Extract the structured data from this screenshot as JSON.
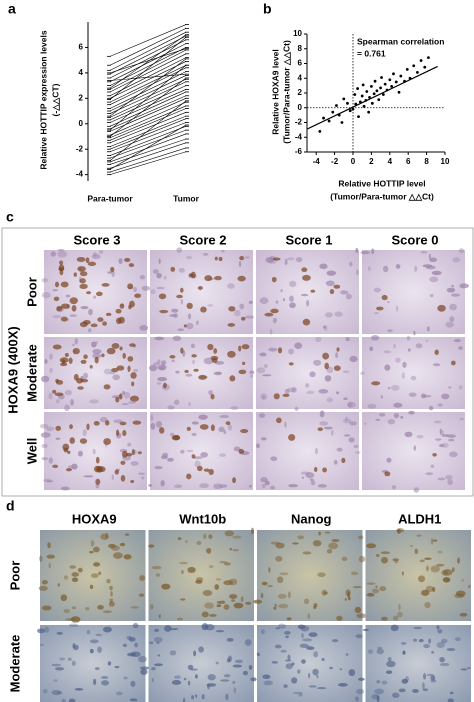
{
  "chart_data": [
    {
      "type": "paired",
      "label": "a",
      "ylabel": [
        "Relative HOTTIP expression levels",
        "(-△△CT)"
      ],
      "categories": [
        "Para-tumor",
        "Tumor"
      ],
      "ylim": [
        -4.5,
        8
      ],
      "yticks": [
        -4,
        -2,
        0,
        2,
        4,
        6
      ],
      "color": "#000000",
      "pairs": [
        [
          5.3,
          7.8
        ],
        [
          4.6,
          7.5
        ],
        [
          4.2,
          7.2
        ],
        [
          3.9,
          6.9
        ],
        [
          3.6,
          6.6
        ],
        [
          3.3,
          6.3
        ],
        [
          3.0,
          6.0
        ],
        [
          2.7,
          5.8
        ],
        [
          2.5,
          5.5
        ],
        [
          2.2,
          5.2
        ],
        [
          2.0,
          4.9
        ],
        [
          1.7,
          4.6
        ],
        [
          1.5,
          4.4
        ],
        [
          1.2,
          4.1
        ],
        [
          1.0,
          3.8
        ],
        [
          0.8,
          3.5
        ],
        [
          0.5,
          3.3
        ],
        [
          0.3,
          3.0
        ],
        [
          0.1,
          2.7
        ],
        [
          -0.2,
          2.5
        ],
        [
          -0.4,
          2.2
        ],
        [
          -0.6,
          2.0
        ],
        [
          -0.9,
          1.7
        ],
        [
          -1.1,
          1.4
        ],
        [
          -1.3,
          1.2
        ],
        [
          -1.5,
          0.9
        ],
        [
          -1.8,
          0.6
        ],
        [
          -2.0,
          0.4
        ],
        [
          -2.2,
          0.1
        ],
        [
          -2.5,
          -0.2
        ],
        [
          -2.7,
          -0.5
        ],
        [
          -3.0,
          -0.8
        ],
        [
          -3.2,
          -1.2
        ],
        [
          -3.5,
          -1.5
        ],
        [
          -3.8,
          -1.9
        ],
        [
          -4.0,
          -2.2
        ],
        [
          1.9,
          6.8
        ],
        [
          0.6,
          5.1
        ],
        [
          -1.0,
          3.6
        ],
        [
          2.8,
          7.0
        ],
        [
          -2.9,
          1.8
        ],
        [
          4.0,
          5.9
        ],
        [
          -0.5,
          4.6
        ],
        [
          3.4,
          3.9
        ],
        [
          -3.6,
          -0.1
        ]
      ]
    },
    {
      "type": "scatter",
      "label": "b",
      "xlabel": [
        "Relative HOTTIP level",
        "(Tumor/Para-tumor △△Ct)"
      ],
      "ylabel": [
        "Relative HOXA9 level",
        "(Tumor/Para-tumor △△Ct)"
      ],
      "annotation": [
        "Spearman correlation",
        "= 0.761"
      ],
      "xlim": [
        -5,
        10
      ],
      "xticks": [
        -4,
        -2,
        0,
        2,
        4,
        6,
        8,
        10
      ],
      "ylim": [
        -6,
        10
      ],
      "yticks": [
        -6,
        -4,
        -2,
        0,
        2,
        4,
        6,
        8,
        10
      ],
      "color": "#000000",
      "reference_x": 0,
      "reference_y": 0,
      "fit": {
        "x": [
          -5,
          9.2
        ],
        "y": [
          -2.9,
          5.6
        ]
      },
      "points": [
        [
          -3.6,
          -3.2
        ],
        [
          -3.2,
          -1.4
        ],
        [
          -2.6,
          -1.8
        ],
        [
          -2.2,
          -0.6
        ],
        [
          -1.8,
          0.3
        ],
        [
          -1.5,
          -1.0
        ],
        [
          -1.2,
          -2.0
        ],
        [
          -1.0,
          1.2
        ],
        [
          -0.6,
          0.6
        ],
        [
          -0.3,
          -0.4
        ],
        [
          0.0,
          -0.2
        ],
        [
          0.2,
          1.8
        ],
        [
          0.3,
          0.5
        ],
        [
          0.5,
          2.6
        ],
        [
          0.6,
          -1.2
        ],
        [
          0.8,
          0.8
        ],
        [
          1.0,
          1.6
        ],
        [
          1.1,
          3.1
        ],
        [
          1.2,
          0.2
        ],
        [
          1.4,
          1.0
        ],
        [
          1.5,
          2.2
        ],
        [
          1.7,
          -0.6
        ],
        [
          1.8,
          1.4
        ],
        [
          2.0,
          2.9
        ],
        [
          2.1,
          0.6
        ],
        [
          2.3,
          1.9
        ],
        [
          2.4,
          3.6
        ],
        [
          2.6,
          2.3
        ],
        [
          2.8,
          1.1
        ],
        [
          3.0,
          2.7
        ],
        [
          3.1,
          4.1
        ],
        [
          3.3,
          1.8
        ],
        [
          3.5,
          3.2
        ],
        [
          3.7,
          2.4
        ],
        [
          4.0,
          3.8
        ],
        [
          4.2,
          2.9
        ],
        [
          4.4,
          4.6
        ],
        [
          4.7,
          3.5
        ],
        [
          5.0,
          2.1
        ],
        [
          5.2,
          4.3
        ],
        [
          5.6,
          3.6
        ],
        [
          5.9,
          5.2
        ],
        [
          6.2,
          4.0
        ],
        [
          6.6,
          5.7
        ],
        [
          7.0,
          4.8
        ],
        [
          7.4,
          6.4
        ],
        [
          7.8,
          5.5
        ],
        [
          8.2,
          6.8
        ]
      ]
    }
  ],
  "panel_c": {
    "label": "c",
    "side_title": "HOXA9 (400X)",
    "columns": [
      "Score 3",
      "Score 2",
      "Score 1",
      "Score 0"
    ],
    "rows": [
      "Poor",
      "Moderate",
      "Well"
    ]
  },
  "panel_d": {
    "label": "d",
    "columns": [
      "HOXA9",
      "Wnt10b",
      "Nanog",
      "ALDH1"
    ],
    "rows": [
      "Poor",
      "Moderate"
    ]
  }
}
